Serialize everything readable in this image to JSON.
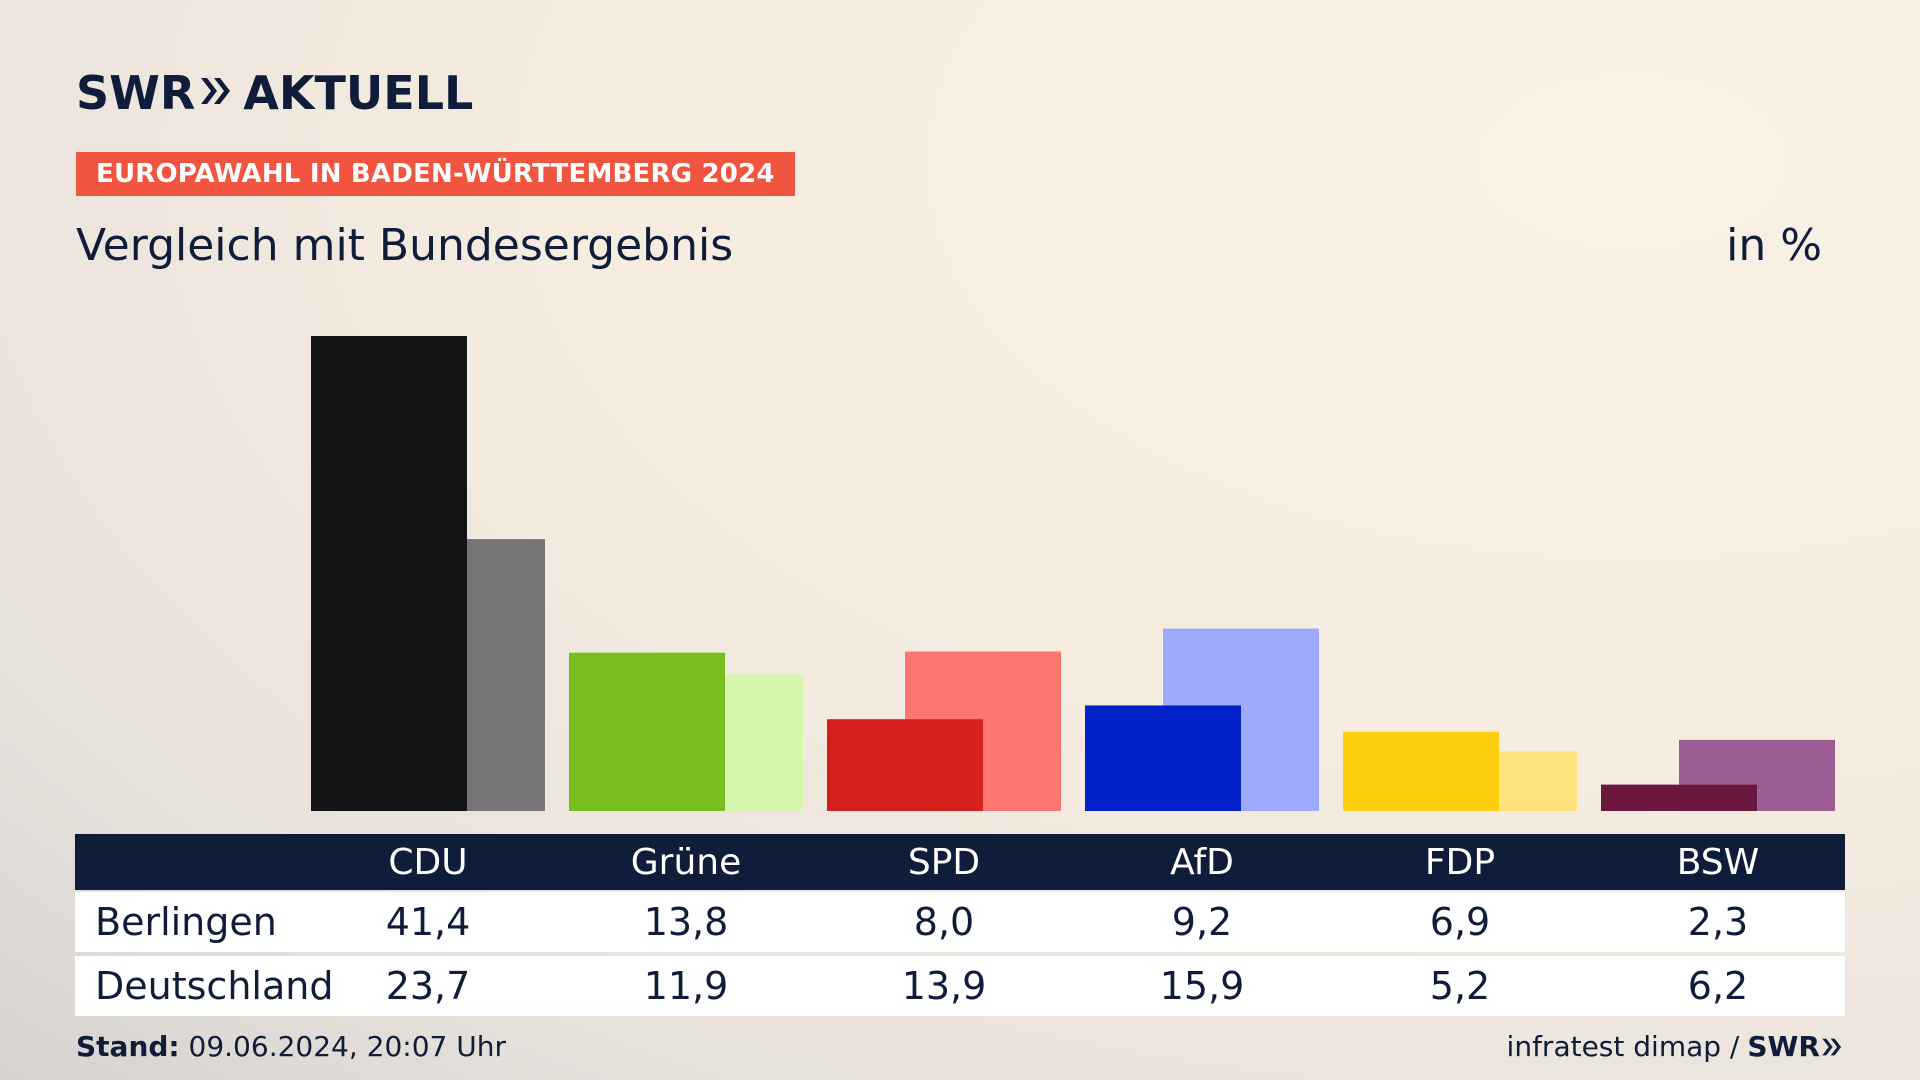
{
  "brand": {
    "name": "SWR",
    "suffix": "AKTUELL"
  },
  "kicker": "EUROPAWAHL IN BADEN-WÜRTTEMBERG 2024",
  "subtitle": "Vergleich mit Bundesergebnis",
  "unit": "in %",
  "table": {
    "rows": [
      {
        "label": "Berlingen",
        "values": [
          "41,4",
          "13,8",
          "8,0",
          "9,2",
          "6,9",
          "2,3"
        ]
      },
      {
        "label": "Deutschland",
        "values": [
          "23,7",
          "11,9",
          "13,9",
          "15,9",
          "5,2",
          "6,2"
        ]
      }
    ]
  },
  "footer": {
    "stand_label": "Stand:",
    "stand_value": "09.06.2024, 20:07 Uhr",
    "source": "infratest dimap /",
    "source_brand": "SWR"
  },
  "chart_data": {
    "type": "bar",
    "categories": [
      "CDU",
      "Grüne",
      "SPD",
      "AfD",
      "FDP",
      "BSW"
    ],
    "series": [
      {
        "name": "Berlingen",
        "values": [
          41.4,
          13.8,
          8.0,
          9.2,
          6.9,
          2.3
        ]
      },
      {
        "name": "Deutschland",
        "values": [
          23.7,
          11.9,
          13.9,
          15.9,
          5.2,
          6.2
        ]
      }
    ],
    "colors_primary": [
      "#141414",
      "#79be1f",
      "#d62020",
      "#0021c8",
      "#ffcf0d",
      "#6b163d"
    ],
    "colors_secondary": [
      "#767474",
      "#d6f5ad",
      "#fd7670",
      "#9eabfd",
      "#ffe47e",
      "#9b5f96"
    ],
    "ylim": [
      0,
      41.4
    ],
    "legend": "table below chart"
  }
}
